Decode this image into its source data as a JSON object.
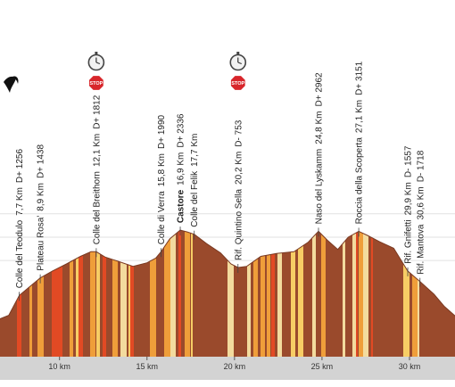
{
  "chart_data": {
    "type": "area",
    "title": "",
    "xlabel": "",
    "ylabel": "",
    "x_unit": "km",
    "xlim": [
      6.6,
      32.6
    ],
    "ylim": [
      2150,
      4750
    ],
    "x_ticks": [
      10,
      15,
      20,
      25,
      30
    ],
    "x_tick_labels": [
      "10 km",
      "15 km",
      "20 km",
      "25 km",
      "30 km"
    ],
    "grid": true,
    "profile": {
      "x": [
        6.6,
        7.1,
        7.7,
        8.3,
        8.9,
        9.6,
        10.4,
        11.2,
        11.8,
        12.1,
        12.6,
        13.4,
        14.2,
        15.0,
        15.5,
        15.8,
        16.3,
        16.9,
        17.3,
        17.7,
        18.4,
        19.2,
        19.8,
        20.2,
        20.7,
        21.5,
        22.4,
        23.4,
        24.2,
        24.8,
        25.3,
        25.9,
        26.5,
        27.1,
        27.6,
        28.3,
        29.1,
        29.9,
        30.6,
        31.4,
        32.0,
        32.6
      ],
      "elevation": [
        2800,
        2860,
        3200,
        3350,
        3500,
        3620,
        3740,
        3870,
        3950,
        3950,
        3860,
        3780,
        3700,
        3760,
        3840,
        3950,
        4170,
        4320,
        4290,
        4250,
        4090,
        3930,
        3740,
        3680,
        3700,
        3870,
        3920,
        3950,
        4110,
        4300,
        4150,
        3990,
        4200,
        4300,
        4230,
        4120,
        4010,
        3620,
        3440,
        3220,
        3010,
        2850
      ]
    },
    "waypoints": [
      {
        "name": "Colle del Teodulo",
        "km": "7,7 Km",
        "elev": "D+ 1256",
        "x": 7.7,
        "bold": false
      },
      {
        "name": "Plateau Rosa'",
        "km": "8,9 Km",
        "elev": "D+ 1438",
        "x": 8.9,
        "bold": false
      },
      {
        "name": "Colle del Breithorn",
        "km": "12,1 Km",
        "elev": "D+ 1812",
        "x": 12.1,
        "bold": false
      },
      {
        "name": "Colle di Verra",
        "km": "15,8 Km",
        "elev": "D+ 1990",
        "x": 15.8,
        "bold": false
      },
      {
        "name": "Castore",
        "km": "16,9 Km",
        "elev": "D+ 2336",
        "x": 16.9,
        "bold": true
      },
      {
        "name": "Colle del Felik",
        "km": "17,7 Km",
        "elev": "",
        "x": 17.7,
        "bold": false
      },
      {
        "name": "Rif. Quintino Sella",
        "km": "20,2 Km",
        "elev": "D- 753",
        "x": 20.2,
        "bold": false
      },
      {
        "name": "Naso del Lyskamm",
        "km": "24,8 Km",
        "elev": "D+ 2962",
        "x": 24.8,
        "bold": false
      },
      {
        "name": "Roccia della Scoperta",
        "km": "27,1 Km",
        "elev": "D+ 3151",
        "x": 27.1,
        "bold": false
      },
      {
        "name": "Rif. Gnifetti",
        "km": "29,9 Km",
        "elev": "D- 1557",
        "x": 29.9,
        "bold": false
      },
      {
        "name": "Rif. Mantova",
        "km": "30,6 Km",
        "elev": "D- 1718",
        "x": 30.6,
        "bold": false
      }
    ],
    "time_barriers": [
      {
        "x": 12.1,
        "label": "STOP"
      },
      {
        "x": 20.2,
        "label": "STOP"
      }
    ],
    "colors": {
      "ground": "#9a4a2c",
      "stripe_yellow": "#ffd86a",
      "stripe_orange": "#f6a53c",
      "stripe_red": "#e84a24",
      "stripe_cream": "#fbe7a8",
      "stop_red": "#d8262b",
      "grid": "#e2e2e2",
      "axis_band": "#d3d3d3"
    }
  }
}
